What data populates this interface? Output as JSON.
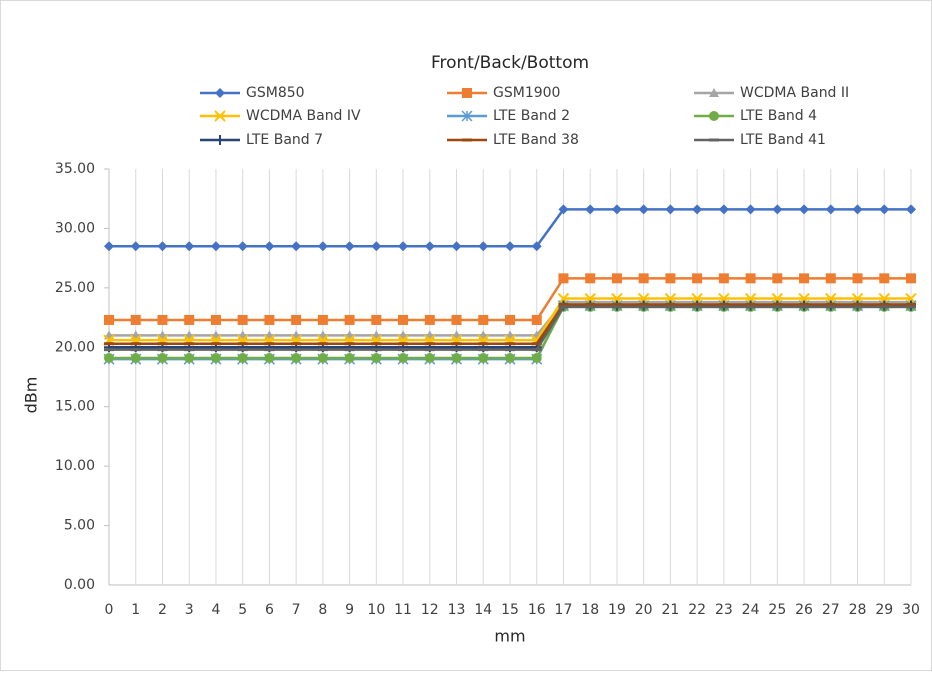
{
  "chart_data": {
    "type": "line",
    "title": "Front/Back/Bottom",
    "x_label": "mm",
    "y_label": "dBm",
    "legend": "top",
    "grid": true,
    "x": [
      0,
      1,
      2,
      3,
      4,
      5,
      6,
      7,
      8,
      9,
      10,
      11,
      12,
      13,
      14,
      15,
      16,
      17,
      18,
      19,
      20,
      21,
      22,
      23,
      24,
      25,
      26,
      27,
      28,
      29,
      30
    ],
    "xlim": [
      0,
      30
    ],
    "xticks": [
      0,
      1,
      2,
      3,
      4,
      5,
      6,
      7,
      8,
      9,
      10,
      11,
      12,
      13,
      14,
      15,
      16,
      17,
      18,
      19,
      20,
      21,
      22,
      23,
      24,
      25,
      26,
      27,
      28,
      29,
      30
    ],
    "ylim": [
      0,
      35
    ],
    "yticks": [
      {
        "value": 0,
        "label": "0.00"
      },
      {
        "value": 5,
        "label": "5.00"
      },
      {
        "value": 10,
        "label": "10.00"
      },
      {
        "value": 15,
        "label": "15.00"
      },
      {
        "value": 20,
        "label": "20.00"
      },
      {
        "value": 25,
        "label": "25.00"
      },
      {
        "value": 30,
        "label": "30.00"
      },
      {
        "value": 35,
        "label": "35.00"
      }
    ],
    "series": [
      {
        "name": "GSM850",
        "color": "#4472c4",
        "marker": "diamond",
        "values": [
          28.5,
          28.5,
          28.5,
          28.5,
          28.5,
          28.5,
          28.5,
          28.5,
          28.5,
          28.5,
          28.5,
          28.5,
          28.5,
          28.5,
          28.5,
          28.5,
          28.5,
          31.6,
          31.6,
          31.6,
          31.6,
          31.6,
          31.6,
          31.6,
          31.6,
          31.6,
          31.6,
          31.6,
          31.6,
          31.6,
          31.6
        ]
      },
      {
        "name": "GSM1900",
        "color": "#ed7d31",
        "marker": "square",
        "values": [
          22.3,
          22.3,
          22.3,
          22.3,
          22.3,
          22.3,
          22.3,
          22.3,
          22.3,
          22.3,
          22.3,
          22.3,
          22.3,
          22.3,
          22.3,
          22.3,
          22.3,
          25.8,
          25.8,
          25.8,
          25.8,
          25.8,
          25.8,
          25.8,
          25.8,
          25.8,
          25.8,
          25.8,
          25.8,
          25.8,
          25.8
        ]
      },
      {
        "name": "WCDMA Band II",
        "color": "#a5a5a5",
        "marker": "triangle",
        "values": [
          21,
          21,
          21,
          21,
          21,
          21,
          21,
          21,
          21,
          21,
          21,
          21,
          21,
          21,
          21,
          21,
          21,
          23.8,
          23.8,
          23.8,
          23.8,
          23.8,
          23.8,
          23.8,
          23.8,
          23.8,
          23.8,
          23.8,
          23.8,
          23.8,
          23.8
        ]
      },
      {
        "name": "WCDMA Band IV",
        "color": "#ffc000",
        "marker": "x",
        "values": [
          20.6,
          20.6,
          20.6,
          20.6,
          20.6,
          20.6,
          20.6,
          20.6,
          20.6,
          20.6,
          20.6,
          20.6,
          20.6,
          20.6,
          20.6,
          20.6,
          20.6,
          24.1,
          24.1,
          24.1,
          24.1,
          24.1,
          24.1,
          24.1,
          24.1,
          24.1,
          24.1,
          24.1,
          24.1,
          24.1,
          24.1
        ]
      },
      {
        "name": "LTE Band 2",
        "color": "#5b9bd5",
        "marker": "asterisk",
        "values": [
          19,
          19,
          19,
          19,
          19,
          19,
          19,
          19,
          19,
          19,
          19,
          19,
          19,
          19,
          19,
          19,
          19,
          23.5,
          23.5,
          23.5,
          23.5,
          23.5,
          23.5,
          23.5,
          23.5,
          23.5,
          23.5,
          23.5,
          23.5,
          23.5,
          23.5
        ]
      },
      {
        "name": "LTE Band 4",
        "color": "#70ad47",
        "marker": "circle",
        "values": [
          19.1,
          19.1,
          19.1,
          19.1,
          19.1,
          19.1,
          19.1,
          19.1,
          19.1,
          19.1,
          19.1,
          19.1,
          19.1,
          19.1,
          19.1,
          19.1,
          19.1,
          23.4,
          23.4,
          23.4,
          23.4,
          23.4,
          23.4,
          23.4,
          23.4,
          23.4,
          23.4,
          23.4,
          23.4,
          23.4,
          23.4
        ]
      },
      {
        "name": "LTE Band 7",
        "color": "#264478",
        "marker": "plus",
        "values": [
          20,
          20,
          20,
          20,
          20,
          20,
          20,
          20,
          20,
          20,
          20,
          20,
          20,
          20,
          20,
          20,
          20,
          23.5,
          23.5,
          23.5,
          23.5,
          23.5,
          23.5,
          23.5,
          23.5,
          23.5,
          23.5,
          23.5,
          23.5,
          23.5,
          23.5
        ]
      },
      {
        "name": "LTE Band 38",
        "color": "#9e480e",
        "marker": "dash",
        "values": [
          20.3,
          20.3,
          20.3,
          20.3,
          20.3,
          20.3,
          20.3,
          20.3,
          20.3,
          20.3,
          20.3,
          20.3,
          20.3,
          20.3,
          20.3,
          20.3,
          20.3,
          23.6,
          23.6,
          23.6,
          23.6,
          23.6,
          23.6,
          23.6,
          23.6,
          23.6,
          23.6,
          23.6,
          23.6,
          23.6,
          23.6
        ]
      },
      {
        "name": "LTE Band 41",
        "color": "#636363",
        "marker": "dash",
        "values": [
          19.8,
          19.8,
          19.8,
          19.8,
          19.8,
          19.8,
          19.8,
          19.8,
          19.8,
          19.8,
          19.8,
          19.8,
          19.8,
          19.8,
          19.8,
          19.8,
          19.8,
          23.4,
          23.4,
          23.4,
          23.4,
          23.4,
          23.4,
          23.4,
          23.4,
          23.4,
          23.4,
          23.4,
          23.4,
          23.4,
          23.4
        ]
      }
    ]
  }
}
